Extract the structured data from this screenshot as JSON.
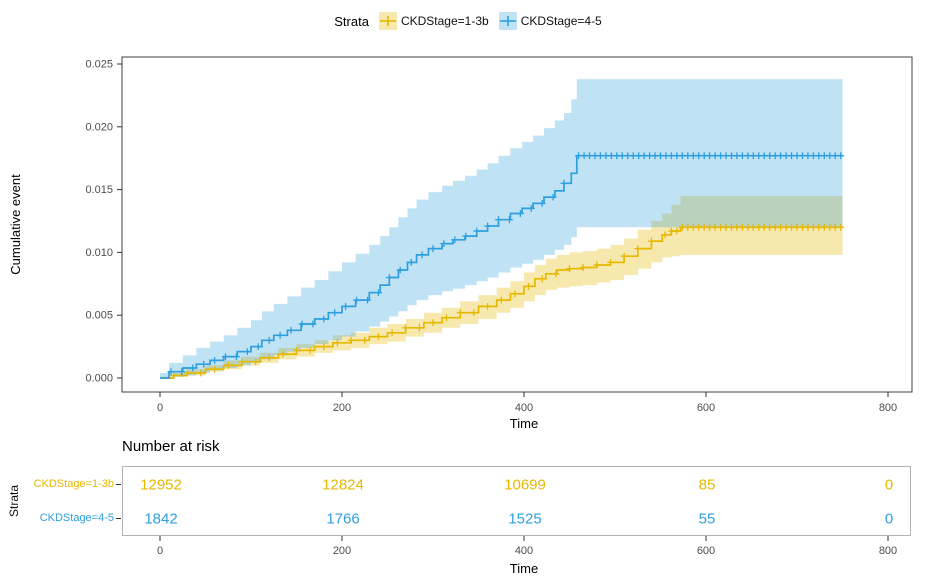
{
  "chart_data": {
    "type": "line",
    "subtype": "kaplan-meier-cumulative-event-with-confidence-bands",
    "title": "",
    "xlabel": "Time",
    "ylabel": "Cumulative event",
    "legend_title": "Strata",
    "legend_position": "top",
    "grid": false,
    "xlim": [
      0,
      800
    ],
    "ylim": [
      0,
      0.025
    ],
    "x_ticks": [
      0,
      200,
      400,
      600,
      800
    ],
    "y_ticks": [
      0,
      0.005,
      0.01,
      0.015,
      0.02,
      0.025
    ],
    "y_tick_labels": [
      "0.000",
      "0.005",
      "0.010",
      "0.015",
      "0.020",
      "0.025"
    ],
    "series": [
      {
        "name": "CKDStage=1-3b",
        "color": "#E7B800",
        "band_opacity": 0.32,
        "t": [
          0,
          15,
          30,
          50,
          70,
          90,
          110,
          130,
          150,
          170,
          190,
          210,
          230,
          250,
          270,
          290,
          310,
          330,
          350,
          370,
          385,
          400,
          412,
          424,
          436,
          450,
          465,
          480,
          495,
          510,
          525,
          540,
          552,
          562,
          572,
          750
        ],
        "y": [
          0,
          0.0002,
          0.0004,
          0.0007,
          0.001,
          0.0013,
          0.0016,
          0.0019,
          0.0022,
          0.0025,
          0.0028,
          0.003,
          0.0033,
          0.0036,
          0.004,
          0.0044,
          0.0048,
          0.0052,
          0.0057,
          0.0062,
          0.0067,
          0.0073,
          0.0079,
          0.0083,
          0.0086,
          0.0087,
          0.0088,
          0.009,
          0.0092,
          0.0097,
          0.0103,
          0.0109,
          0.0114,
          0.0117,
          0.012,
          0.012
        ],
        "lo": [
          0,
          0.0001,
          0.0002,
          0.0005,
          0.0007,
          0.001,
          0.0012,
          0.0015,
          0.0017,
          0.002,
          0.0022,
          0.0024,
          0.0027,
          0.0029,
          0.0033,
          0.0036,
          0.004,
          0.0043,
          0.0047,
          0.0052,
          0.0056,
          0.0061,
          0.0066,
          0.007,
          0.0072,
          0.0073,
          0.0074,
          0.0076,
          0.0078,
          0.0082,
          0.0087,
          0.0092,
          0.0096,
          0.0097,
          0.0098,
          0.0098
        ],
        "hi": [
          0.0001,
          0.0004,
          0.0007,
          0.001,
          0.0014,
          0.0017,
          0.002,
          0.0024,
          0.0027,
          0.003,
          0.0034,
          0.0036,
          0.004,
          0.0043,
          0.0047,
          0.0052,
          0.0056,
          0.0061,
          0.0066,
          0.0072,
          0.0077,
          0.0084,
          0.009,
          0.0095,
          0.0098,
          0.01,
          0.0101,
          0.0103,
          0.0106,
          0.0111,
          0.0118,
          0.0125,
          0.0131,
          0.0138,
          0.0145,
          0.0145
        ],
        "censor_segments": [
          {
            "from": 15,
            "to": 555,
            "step": 15
          },
          {
            "from": 562,
            "to": 748,
            "step": 6
          }
        ]
      },
      {
        "name": "CKDStage=4-5",
        "color": "#2E9FDF",
        "band_opacity": 0.3,
        "t": [
          0,
          10,
          25,
          40,
          55,
          70,
          85,
          100,
          112,
          125,
          140,
          155,
          170,
          185,
          200,
          215,
          230,
          242,
          252,
          262,
          272,
          282,
          295,
          310,
          322,
          335,
          348,
          360,
          372,
          385,
          398,
          410,
          422,
          434,
          444,
          452,
          458,
          750
        ],
        "y": [
          0,
          0.0005,
          0.0008,
          0.0011,
          0.0014,
          0.0017,
          0.0021,
          0.0025,
          0.003,
          0.0034,
          0.0038,
          0.0043,
          0.0047,
          0.0052,
          0.0057,
          0.0062,
          0.0068,
          0.0074,
          0.008,
          0.0086,
          0.0092,
          0.0098,
          0.0103,
          0.0107,
          0.011,
          0.0113,
          0.0117,
          0.0121,
          0.0126,
          0.0131,
          0.0135,
          0.0139,
          0.0144,
          0.0149,
          0.0155,
          0.0163,
          0.0177,
          0.0177
        ],
        "lo": [
          0,
          0.0001,
          0.0002,
          0.0004,
          0.0006,
          0.0008,
          0.001,
          0.0012,
          0.0015,
          0.0018,
          0.0021,
          0.0024,
          0.0027,
          0.003,
          0.0033,
          0.0037,
          0.0041,
          0.0045,
          0.0049,
          0.0053,
          0.0058,
          0.0062,
          0.0066,
          0.0069,
          0.0071,
          0.0074,
          0.0077,
          0.008,
          0.0084,
          0.0088,
          0.0091,
          0.0094,
          0.0098,
          0.0102,
          0.0106,
          0.0112,
          0.012,
          0.012
        ],
        "hi": [
          0.0004,
          0.0012,
          0.0018,
          0.0024,
          0.0029,
          0.0034,
          0.004,
          0.0046,
          0.0053,
          0.0059,
          0.0065,
          0.0072,
          0.0078,
          0.0085,
          0.0092,
          0.0099,
          0.0106,
          0.0113,
          0.012,
          0.0128,
          0.0135,
          0.0142,
          0.0148,
          0.0153,
          0.0157,
          0.0161,
          0.0166,
          0.0171,
          0.0177,
          0.0183,
          0.0188,
          0.0193,
          0.0199,
          0.0205,
          0.0211,
          0.0222,
          0.0238,
          0.0238
        ],
        "censor_segments": [
          {
            "from": 12,
            "to": 444,
            "step": 12
          },
          {
            "from": 460,
            "to": 748,
            "step": 6
          }
        ]
      }
    ]
  },
  "risk_table": {
    "title": "Number at risk",
    "axis_label": "Strata",
    "xlabel": "Time",
    "times": [
      0,
      200,
      400,
      600,
      800
    ],
    "rows": [
      {
        "label": "CKDStage=1-3b",
        "color": "#E7B800",
        "values": [
          "12952",
          "12824",
          "10699",
          "85",
          "0"
        ]
      },
      {
        "label": "CKDStage=4-5",
        "color": "#2E9FDF",
        "values": [
          "1842",
          "1766",
          "1525",
          "55",
          "0"
        ]
      }
    ]
  }
}
